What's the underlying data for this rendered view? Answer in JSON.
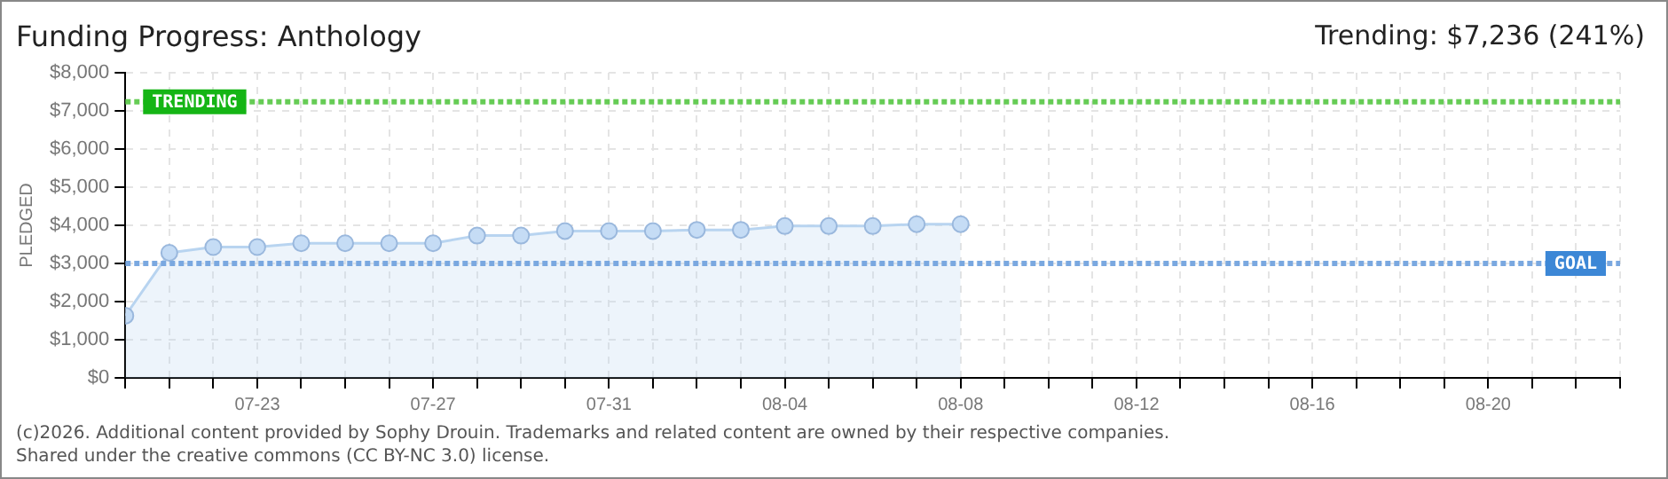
{
  "chart_data": {
    "type": "area",
    "title": "Funding Progress: Anthology",
    "ylabel": "PLEDGED",
    "annotations": [
      "Trending: $7,236 (241%)",
      "(c)2026. Additional content provided by Sophy Drouin. Trademarks and related content are owned by their respective companies.",
      "Shared under the creative commons (CC BY-NC 3.0) license."
    ],
    "x": [
      "--07-20",
      "--07-21",
      "--07-22",
      "--07-23",
      "--07-24",
      "--07-25",
      "--07-26",
      "--07-27",
      "--07-28",
      "--07-29",
      "--07-30",
      "--07-31",
      "--08-01",
      "--08-02",
      "--08-03",
      "--08-04",
      "--08-05",
      "--08-06",
      "--08-07",
      "--08-08"
    ],
    "series": [
      {
        "color": "#b8d4f0",
        "values": [
          1630,
          3280,
          3430,
          3430,
          3530,
          3530,
          3530,
          3530,
          3730,
          3730,
          3850,
          3850,
          3850,
          3880,
          3880,
          3980,
          3980,
          3980,
          4030,
          4030
        ]
      }
    ],
    "xlim": [
      "--07-20",
      "--08-23"
    ],
    "xticks": [
      {
        "value": "--07-20",
        "label": null
      },
      {
        "value": "--07-21",
        "label": null
      },
      {
        "value": "--07-22",
        "label": null
      },
      {
        "value": "--07-23",
        "label": "07-23"
      },
      {
        "value": "--07-24",
        "label": null
      },
      {
        "value": "--07-25",
        "label": null
      },
      {
        "value": "--07-26",
        "label": null
      },
      {
        "value": "--07-27",
        "label": "07-27"
      },
      {
        "value": "--07-28",
        "label": null
      },
      {
        "value": "--07-29",
        "label": null
      },
      {
        "value": "--07-30",
        "label": null
      },
      {
        "value": "--07-31",
        "label": "07-31"
      },
      {
        "value": "--08-01",
        "label": null
      },
      {
        "value": "--08-02",
        "label": null
      },
      {
        "value": "--08-03",
        "label": null
      },
      {
        "value": "--08-04",
        "label": "08-04"
      },
      {
        "value": "--08-05",
        "label": null
      },
      {
        "value": "--08-06",
        "label": null
      },
      {
        "value": "--08-07",
        "label": null
      },
      {
        "value": "--08-08",
        "label": "08-08"
      },
      {
        "value": "--08-09",
        "label": null
      },
      {
        "value": "--08-10",
        "label": null
      },
      {
        "value": "--08-11",
        "label": null
      },
      {
        "value": "--08-12",
        "label": "08-12"
      },
      {
        "value": "--08-13",
        "label": null
      },
      {
        "value": "--08-14",
        "label": null
      },
      {
        "value": "--08-15",
        "label": null
      },
      {
        "value": "--08-16",
        "label": "08-16"
      },
      {
        "value": "--08-17",
        "label": null
      },
      {
        "value": "--08-18",
        "label": null
      },
      {
        "value": "--08-19",
        "label": null
      },
      {
        "value": "--08-20",
        "label": "08-20"
      },
      {
        "value": "--08-21",
        "label": null
      },
      {
        "value": "--08-22",
        "label": null
      },
      {
        "value": "--08-23",
        "label": null
      }
    ],
    "ylim": [
      0,
      8000
    ],
    "yticks": [
      {
        "value": 0,
        "label": "$0"
      },
      {
        "value": 1000,
        "label": "$1,000"
      },
      {
        "value": 2000,
        "label": "$2,000"
      },
      {
        "value": 3000,
        "label": "$3,000"
      },
      {
        "value": 4000,
        "label": "$4,000"
      },
      {
        "value": 5000,
        "label": "$5,000"
      },
      {
        "value": 6000,
        "label": "$6,000"
      },
      {
        "value": 7000,
        "label": "$7,000"
      },
      {
        "value": 8000,
        "label": "$8,000"
      }
    ],
    "ref_lines": [
      {
        "axis": "y",
        "value": 7236,
        "label": "TRENDING",
        "color": "#66cc55",
        "line_style": "dotted"
      },
      {
        "axis": "y",
        "value": 3000,
        "label": "GOAL",
        "color": "#7aa8e0",
        "line_style": "dotted"
      }
    ],
    "grid": true,
    "marker": "circle",
    "legend": false
  }
}
